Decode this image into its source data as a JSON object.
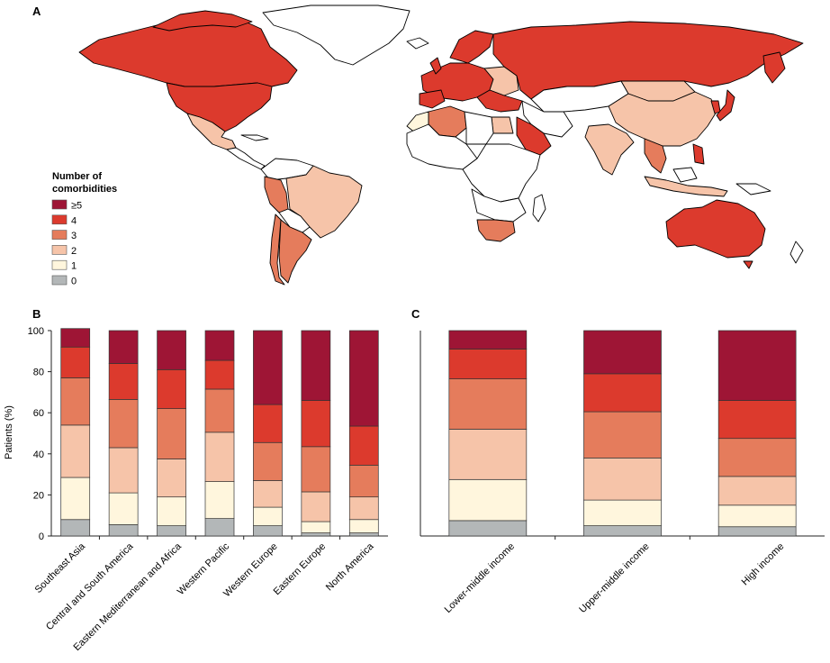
{
  "panels": {
    "a": "A",
    "b": "B",
    "c": "C"
  },
  "legend": {
    "title_line1": "Number of",
    "title_line2": "comorbidities",
    "items": [
      {
        "label": "≥5",
        "color": "#9e1535"
      },
      {
        "label": "4",
        "color": "#dc3a2d"
      },
      {
        "label": "3",
        "color": "#e57c5c"
      },
      {
        "label": "2",
        "color": "#f6c4a9"
      },
      {
        "label": "1",
        "color": "#fff6dd"
      },
      {
        "label": "0",
        "color": "#b3b7b8"
      }
    ]
  },
  "map": {
    "countries_colored": [
      {
        "region": "North America (USA, Canada)",
        "level": "4"
      },
      {
        "region": "Russia",
        "level": "4"
      },
      {
        "region": "Australia",
        "level": "4"
      },
      {
        "region": "Brazil",
        "level": "2"
      },
      {
        "region": "Argentina",
        "level": "3"
      },
      {
        "region": "China",
        "level": "2"
      },
      {
        "region": "Algeria",
        "level": "3"
      },
      {
        "region": "South Africa",
        "level": "3"
      },
      {
        "region": "Saudi Arabia",
        "level": "4"
      },
      {
        "region": "India",
        "level": "2"
      },
      {
        "region": "Mexico",
        "level": "2"
      },
      {
        "region": "Morocco",
        "level": "1"
      }
    ]
  },
  "chart_data": [
    {
      "type": "bar",
      "stacked": true,
      "panel": "B",
      "ylabel": "Patients (%)",
      "ylim": [
        0,
        100
      ],
      "yticks": [
        "0",
        "20",
        "40",
        "60",
        "80",
        "100"
      ],
      "categories": [
        "Southeast Asia",
        "Central and South America",
        "Eastern Mediterranean and Africa",
        "Western Pacific",
        "Western Europe",
        "Eastern Europe",
        "North America"
      ],
      "series": [
        {
          "name": "0",
          "values": [
            8,
            5.5,
            5,
            8.5,
            5,
            1.5,
            1.5
          ]
        },
        {
          "name": "1",
          "values": [
            20.5,
            15.5,
            14,
            18,
            9,
            5.5,
            6.5
          ]
        },
        {
          "name": "2",
          "values": [
            25.5,
            22,
            18.5,
            24,
            13,
            14.5,
            11
          ]
        },
        {
          "name": "3",
          "values": [
            23,
            23.5,
            24.5,
            21,
            18.5,
            22,
            15.5
          ]
        },
        {
          "name": "4",
          "values": [
            15,
            17.5,
            19,
            14,
            18.5,
            22.5,
            19
          ]
        },
        {
          "name": "≥5",
          "values": [
            9,
            16,
            19,
            14.5,
            36,
            34,
            46.5
          ]
        }
      ]
    },
    {
      "type": "bar",
      "stacked": true,
      "panel": "C",
      "ylim": [
        0,
        100
      ],
      "categories": [
        "Lower-middle income",
        "Upper-middle income",
        "High income"
      ],
      "series": [
        {
          "name": "0",
          "values": [
            7.5,
            5,
            4.5
          ]
        },
        {
          "name": "1",
          "values": [
            20,
            12.5,
            10.5
          ]
        },
        {
          "name": "2",
          "values": [
            24.5,
            20.5,
            14
          ]
        },
        {
          "name": "3",
          "values": [
            24.5,
            22.5,
            18.5
          ]
        },
        {
          "name": "4",
          "values": [
            14.5,
            18.5,
            18.5
          ]
        },
        {
          "name": "≥5",
          "values": [
            9,
            21,
            34
          ]
        }
      ]
    }
  ]
}
